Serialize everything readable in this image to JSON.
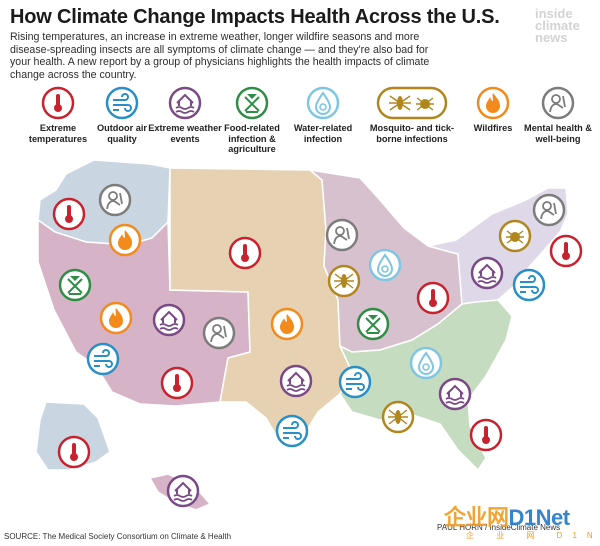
{
  "header": {
    "title": "How Climate Change Impacts Health Across the U.S.",
    "intro": "Rising temperatures, an increase in extreme weather, longer wildfire seasons and more disease-spreading insects are all symptoms of climate change — and they're also bad for your health. A new report by a group of physicians highlights the health impacts of climate change across the country."
  },
  "logo": {
    "line1": "inside",
    "line2": "climate",
    "line3": "news"
  },
  "legend": [
    {
      "icon": "thermometer-icon",
      "color": "#c8222e",
      "label": "Extreme temperatures"
    },
    {
      "icon": "wind-air-icon",
      "color": "#2a8fc6",
      "label": "Outdoor air quality"
    },
    {
      "icon": "flooded-house-icon",
      "color": "#7a4a86",
      "label": "Extreme weather events"
    },
    {
      "icon": "food-tools-icon",
      "color": "#2f8d45",
      "label": "Food-related infection & agriculture"
    },
    {
      "icon": "biohazard-drop-icon",
      "color": "#7fc6e2",
      "label": "Water-related infection"
    },
    {
      "icon": "mosquito-tick-icon",
      "color": "#b0861d",
      "label": "Mosquito- and tick-borne infections"
    },
    {
      "icon": "flame-icon",
      "color": "#f28a1c",
      "label": "Wildfires"
    },
    {
      "icon": "head-in-hands-icon",
      "color": "#7c7c7c",
      "label": "Mental health & well-being"
    }
  ],
  "colors": {
    "northwest": "#c9d6e2",
    "southwest": "#d6b3c6",
    "great_plains": "#e6d2b3",
    "midwest": "#d8c1cf",
    "northeast": "#ded8e8",
    "southeast": "#c6dcc0",
    "alaska": "#c9d6e2",
    "hawaii": "#d6b3c6",
    "border": "#ffffff"
  },
  "source": "SOURCE: The Medical Society Consortium on Climate & Health",
  "credit": "PAUL HORN / InsideClimate News",
  "watermark": {
    "part1": "企业网",
    "part2": "D1Net",
    "sub": "企 业 网 D1Net"
  }
}
